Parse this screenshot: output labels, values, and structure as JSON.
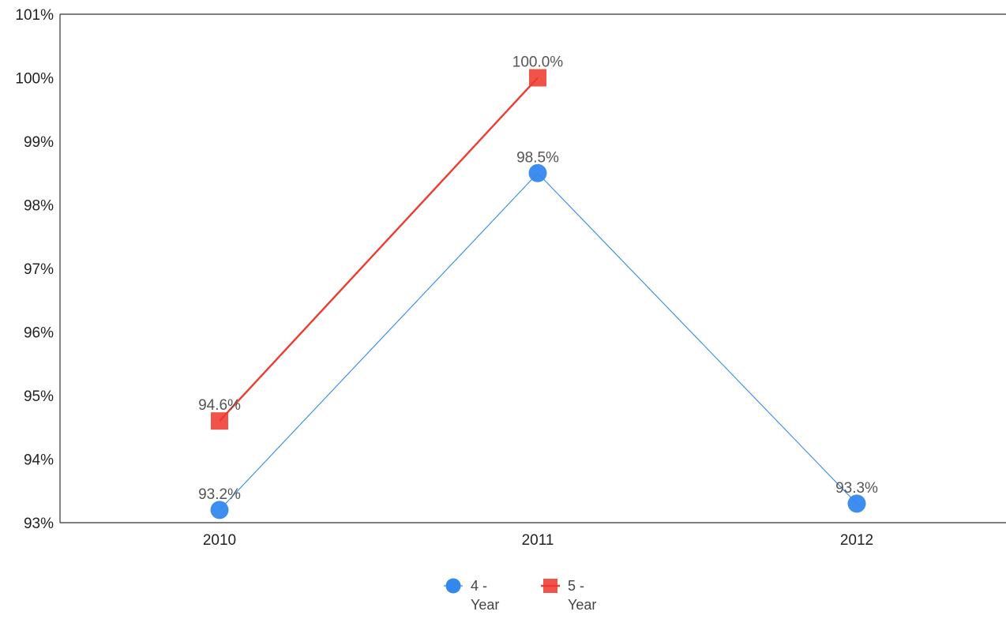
{
  "chart_data": {
    "type": "line",
    "title": "",
    "xlabel": "",
    "ylabel": "",
    "categories": [
      "2010",
      "2011",
      "2012"
    ],
    "ylim": [
      93,
      101
    ],
    "y_ticks": [
      93,
      94,
      95,
      96,
      97,
      98,
      99,
      100,
      101
    ],
    "y_tick_labels": [
      "93%",
      "94%",
      "95%",
      "96%",
      "97%",
      "98%",
      "99%",
      "100%",
      "101%"
    ],
    "grid": false,
    "legend_position": "bottom",
    "series": [
      {
        "name": "4 - Year",
        "legend_lines": [
          "4 -",
          "Year"
        ],
        "color": "#3388ee",
        "marker": "circle",
        "values": [
          93.2,
          98.5,
          93.3
        ],
        "data_labels": [
          "93.2%",
          "98.5%",
          "93.3%"
        ]
      },
      {
        "name": "5 - Year",
        "legend_lines": [
          "5 -",
          "Year"
        ],
        "color": "#ee3b30",
        "marker": "square",
        "values": [
          94.6,
          100.0,
          null
        ],
        "data_labels": [
          "94.6%",
          "100.0%",
          null
        ]
      }
    ]
  }
}
